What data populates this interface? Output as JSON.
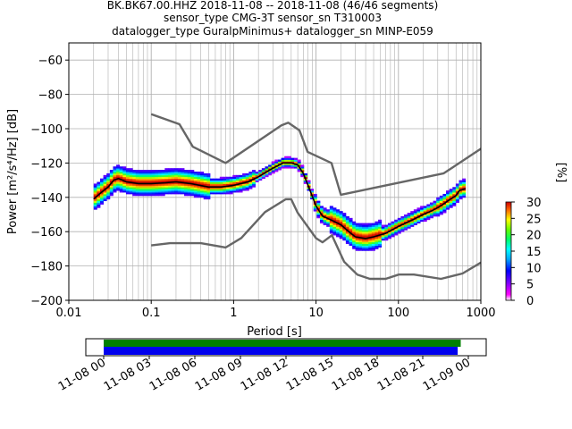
{
  "chart_data": [
    {
      "type": "heatmap",
      "title_lines": [
        "BK.BK67.00.HHZ   2018-11-08 -- 2018-11-08  (46/46 segments)",
        "sensor_type CMG-3T sensor_sn T310003",
        "datalogger_type GuralpMinimus+ datalogger_sn MINP-E059"
      ],
      "xlabel": "Period [s]",
      "ylabel": "Power [m²/s⁴/Hz] [dB]",
      "xscale": "log",
      "xlim": [
        0.01,
        1000
      ],
      "ylim": [
        -200,
        -50
      ],
      "x_ticks": [
        0.01,
        0.1,
        1,
        10,
        100,
        1000
      ],
      "x_tick_labels": [
        "0.01",
        "0.1",
        "1",
        "10",
        "100",
        "1000"
      ],
      "y_ticks": [
        -200,
        -180,
        -160,
        -140,
        -120,
        -100,
        -80,
        -60
      ],
      "y_tick_labels": [
        "−200",
        "−180",
        "−160",
        "−140",
        "−120",
        "−100",
        "−80",
        "−60"
      ],
      "grid": true,
      "series": [
        {
          "role": "new-high-noise-model",
          "color": "#666666",
          "x": [
            0.1,
            0.22,
            0.32,
            0.8,
            3.8,
            4.6,
            6.3,
            7.9,
            15.4,
            20,
            354.8,
            10000
          ],
          "y": [
            -91.5,
            -97.4,
            -110.5,
            -120,
            -98,
            -96.5,
            -101,
            -113.5,
            -120,
            -138.5,
            -126,
            -80
          ]
        },
        {
          "role": "new-low-noise-model",
          "color": "#666666",
          "x": [
            0.1,
            0.17,
            0.4,
            0.8,
            1.24,
            2.4,
            4.3,
            5,
            6,
            10,
            12,
            15.6,
            21.9,
            31.6,
            45,
            70,
            101,
            154,
            328,
            600,
            1000
          ],
          "y": [
            -168,
            -166.7,
            -166.7,
            -169.2,
            -163.7,
            -148.6,
            -141.1,
            -141.1,
            -149,
            -163.8,
            -166.2,
            -162.1,
            -177.5,
            -185,
            -187.5,
            -187.5,
            -185,
            -185,
            -187.5,
            -184.4,
            -178
          ]
        },
        {
          "role": "psd-mean",
          "color": "#000000",
          "x": [
            0.02,
            0.025,
            0.03,
            0.035,
            0.04,
            0.05,
            0.07,
            0.1,
            0.15,
            0.2,
            0.3,
            0.5,
            0.7,
            1,
            1.5,
            2,
            3,
            4,
            5,
            6,
            7,
            8,
            10,
            12,
            15,
            20,
            25,
            30,
            40,
            50,
            70,
            100,
            150,
            200,
            250,
            300,
            350,
            400,
            500,
            550,
            650
          ],
          "y": [
            -141,
            -137,
            -134,
            -130,
            -129,
            -131,
            -132,
            -132,
            -131.5,
            -131,
            -132,
            -134,
            -134,
            -133,
            -131,
            -128,
            -123,
            -120,
            -120,
            -121,
            -126,
            -133,
            -145,
            -151,
            -153,
            -156,
            -160,
            -163,
            -164,
            -163,
            -161,
            -157,
            -153,
            -150,
            -148,
            -146,
            -144,
            -142,
            -139,
            -136,
            -135
          ]
        }
      ],
      "colorbar": {
        "label": "[%]",
        "range": [
          0,
          30
        ],
        "ticks": [
          0,
          5,
          10,
          15,
          20,
          25,
          30
        ],
        "colormap": "pqlx"
      }
    },
    {
      "type": "timeline",
      "x_tick_labels": [
        "11-08 00",
        "11-08 03",
        "11-08 06",
        "11-08 09",
        "11-08 12",
        "11-08 15",
        "11-08 18",
        "11-08 21",
        "11-09 00"
      ],
      "bars": [
        {
          "role": "data-availability",
          "color": "#008000",
          "start_hours": 0,
          "end_hours": 23.5
        },
        {
          "role": "psd-segments-used",
          "color": "#0000ee",
          "start_hours": 0,
          "end_hours": 23.3
        }
      ]
    }
  ]
}
